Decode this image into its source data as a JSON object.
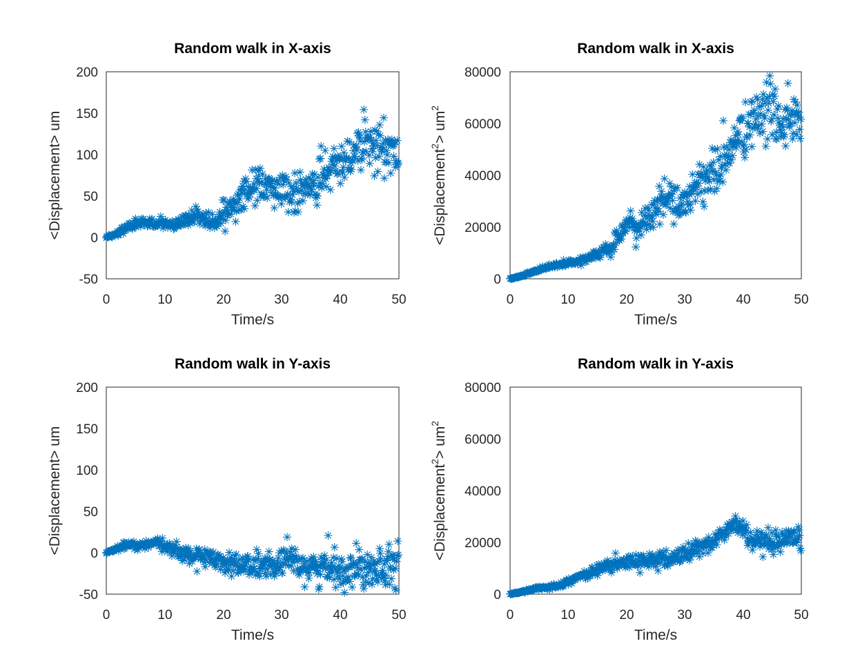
{
  "figure": {
    "background": "#ffffff",
    "marker_color": "#0072bd",
    "axis_color": "#262626"
  },
  "chart_data": [
    {
      "type": "scatter",
      "marker": "asterisk",
      "title": "Random walk in X-axis",
      "xlabel": "Time/s",
      "ylabel": "<Displacement> um",
      "xlim": [
        0,
        50
      ],
      "ylim": [
        -50,
        200
      ],
      "xticks": [
        0,
        10,
        20,
        30,
        40,
        50
      ],
      "yticks": [
        -50,
        0,
        50,
        100,
        150,
        200
      ],
      "xticklabels": [
        "0",
        "10",
        "20",
        "30",
        "40",
        "50"
      ],
      "yticklabels": [
        "-50",
        "0",
        "50",
        "100",
        "150",
        "200"
      ],
      "grid": false,
      "series": [
        {
          "x": [
            0,
            1,
            2,
            3,
            4,
            5,
            6,
            7,
            8,
            9,
            10,
            11,
            12,
            13,
            14,
            15,
            16,
            17,
            18,
            19,
            20,
            21,
            22,
            23,
            24,
            25,
            26,
            27,
            28,
            29,
            30,
            31,
            32,
            33,
            34,
            35,
            36,
            37,
            38,
            39,
            40,
            41,
            42,
            43,
            44,
            45,
            46,
            47,
            48,
            49,
            50
          ],
          "y": [
            0,
            2,
            5,
            10,
            13,
            16,
            18,
            17,
            16,
            18,
            17,
            15,
            16,
            20,
            22,
            25,
            27,
            22,
            18,
            20,
            28,
            38,
            42,
            48,
            55,
            60,
            63,
            62,
            60,
            58,
            55,
            52,
            50,
            53,
            58,
            62,
            68,
            72,
            78,
            85,
            90,
            95,
            100,
            110,
            118,
            115,
            110,
            105,
            100,
            105,
            98
          ],
          "spread": [
            1,
            2,
            3,
            4,
            5,
            5,
            5,
            5,
            5,
            5,
            6,
            6,
            7,
            7,
            8,
            8,
            9,
            10,
            10,
            11,
            12,
            13,
            14,
            15,
            16,
            16,
            17,
            18,
            18,
            19,
            20,
            20,
            21,
            21,
            22,
            22,
            23,
            23,
            24,
            24,
            25,
            25,
            25,
            26,
            26,
            26,
            27,
            27,
            27,
            28,
            28
          ]
        }
      ]
    },
    {
      "type": "scatter",
      "marker": "asterisk",
      "title": "Random walk in X-axis",
      "xlabel": "Time/s",
      "ylabel_main": "<Displacement",
      "ylabel_sup": "2",
      "ylabel_tail": "> um",
      "ylabel_sup2": "2",
      "xlim": [
        0,
        50
      ],
      "ylim": [
        0,
        80000
      ],
      "xticks": [
        0,
        10,
        20,
        30,
        40,
        50
      ],
      "yticks": [
        0,
        20000,
        40000,
        60000,
        80000
      ],
      "xticklabels": [
        "0",
        "10",
        "20",
        "30",
        "40",
        "50"
      ],
      "yticklabels": [
        "0",
        "20000",
        "40000",
        "60000",
        "80000"
      ],
      "grid": false,
      "series": [
        {
          "x": [
            0,
            1,
            2,
            3,
            4,
            5,
            6,
            7,
            8,
            9,
            10,
            11,
            12,
            13,
            14,
            15,
            16,
            17,
            18,
            19,
            20,
            21,
            22,
            23,
            24,
            25,
            26,
            27,
            28,
            29,
            30,
            31,
            32,
            33,
            34,
            35,
            36,
            37,
            38,
            39,
            40,
            41,
            42,
            43,
            44,
            45,
            46,
            47,
            48,
            49,
            50
          ],
          "y": [
            0,
            500,
            1200,
            2000,
            2800,
            3500,
            4200,
            4800,
            5200,
            5600,
            6000,
            6400,
            7000,
            7800,
            8500,
            9500,
            10500,
            12000,
            14000,
            17000,
            20000,
            21000,
            20000,
            22000,
            24000,
            26000,
            30000,
            32000,
            30000,
            29000,
            30000,
            33000,
            36000,
            38000,
            40000,
            41000,
            43000,
            46000,
            50000,
            54000,
            57000,
            59000,
            61000,
            63000,
            64000,
            65000,
            63000,
            61000,
            62000,
            60000,
            58000
          ],
          "spread": [
            150,
            250,
            400,
            500,
            600,
            700,
            800,
            800,
            900,
            900,
            1000,
            1100,
            1200,
            1300,
            1500,
            1700,
            2000,
            2400,
            2800,
            3200,
            3600,
            4000,
            4300,
            4600,
            4900,
            5200,
            5500,
            5800,
            6000,
            6200,
            6400,
            6600,
            6800,
            7000,
            7200,
            7400,
            7600,
            7800,
            8000,
            8200,
            8400,
            8600,
            8800,
            9000,
            9200,
            9400,
            9500,
            9600,
            9700,
            9800,
            9900
          ]
        }
      ]
    },
    {
      "type": "scatter",
      "marker": "asterisk",
      "title": "Random walk in Y-axis",
      "xlabel": "Time/s",
      "ylabel": "<Displacement> um",
      "xlim": [
        0,
        50
      ],
      "ylim": [
        -50,
        200
      ],
      "xticks": [
        0,
        10,
        20,
        30,
        40,
        50
      ],
      "yticks": [
        -50,
        0,
        50,
        100,
        150,
        200
      ],
      "xticklabels": [
        "0",
        "10",
        "20",
        "30",
        "40",
        "50"
      ],
      "yticklabels": [
        "-50",
        "0",
        "50",
        "100",
        "150",
        "200"
      ],
      "grid": false,
      "series": [
        {
          "x": [
            0,
            1,
            2,
            3,
            4,
            5,
            6,
            7,
            8,
            9,
            10,
            11,
            12,
            13,
            14,
            15,
            16,
            17,
            18,
            19,
            20,
            21,
            22,
            23,
            24,
            25,
            26,
            27,
            28,
            29,
            30,
            31,
            32,
            33,
            34,
            35,
            36,
            37,
            38,
            39,
            40,
            41,
            42,
            43,
            44,
            45,
            46,
            47,
            48,
            49,
            50
          ],
          "y": [
            0,
            3,
            5,
            8,
            10,
            9,
            8,
            10,
            11,
            10,
            8,
            5,
            3,
            0,
            -2,
            -4,
            -5,
            -6,
            -5,
            -8,
            -10,
            -12,
            -14,
            -15,
            -16,
            -17,
            -15,
            -14,
            -16,
            -18,
            -15,
            -12,
            -10,
            -12,
            -15,
            -18,
            -20,
            -18,
            -15,
            -17,
            -20,
            -22,
            -20,
            -18,
            -15,
            -14,
            -16,
            -15,
            -12,
            -10,
            -12
          ],
          "spread": [
            1,
            2,
            3,
            4,
            4,
            4,
            5,
            5,
            5,
            6,
            6,
            7,
            7,
            8,
            8,
            9,
            9,
            10,
            10,
            11,
            11,
            12,
            12,
            13,
            13,
            14,
            14,
            15,
            15,
            15,
            16,
            16,
            16,
            17,
            17,
            17,
            18,
            18,
            18,
            19,
            19,
            19,
            20,
            20,
            20,
            20,
            21,
            21,
            21,
            22,
            22
          ]
        }
      ]
    },
    {
      "type": "scatter",
      "marker": "asterisk",
      "title": "Random walk in Y-axis",
      "xlabel": "Time/s",
      "ylabel_main": "<Displacement",
      "ylabel_sup": "2",
      "ylabel_tail": "> um",
      "ylabel_sup2": "2",
      "xlim": [
        0,
        50
      ],
      "ylim": [
        0,
        80000
      ],
      "xticks": [
        0,
        10,
        20,
        30,
        40,
        50
      ],
      "yticks": [
        0,
        20000,
        40000,
        60000,
        80000
      ],
      "xticklabels": [
        "0",
        "10",
        "20",
        "30",
        "40",
        "50"
      ],
      "yticklabels": [
        "0",
        "20000",
        "40000",
        "60000",
        "80000"
      ],
      "grid": false,
      "series": [
        {
          "x": [
            0,
            1,
            2,
            3,
            4,
            5,
            6,
            7,
            8,
            9,
            10,
            11,
            12,
            13,
            14,
            15,
            16,
            17,
            18,
            19,
            20,
            21,
            22,
            23,
            24,
            25,
            26,
            27,
            28,
            29,
            30,
            31,
            32,
            33,
            34,
            35,
            36,
            37,
            38,
            39,
            40,
            41,
            42,
            43,
            44,
            45,
            46,
            47,
            48,
            49,
            50
          ],
          "y": [
            0,
            400,
            900,
            1400,
            1900,
            2300,
            2600,
            2800,
            3200,
            4000,
            5000,
            6000,
            6800,
            7600,
            8500,
            9500,
            10500,
            11000,
            11500,
            11800,
            12000,
            12500,
            13000,
            13200,
            13000,
            12800,
            13000,
            13500,
            14000,
            14500,
            15500,
            16500,
            17500,
            18500,
            19500,
            20500,
            22000,
            24000,
            26000,
            27000,
            25000,
            22000,
            20000,
            19000,
            19500,
            20000,
            19000,
            20000,
            21000,
            20500,
            20000
          ],
          "spread": [
            100,
            200,
            300,
            400,
            500,
            600,
            600,
            700,
            800,
            900,
            1000,
            1100,
            1200,
            1300,
            1400,
            1600,
            1800,
            2000,
            2100,
            2200,
            2300,
            2400,
            2500,
            2600,
            2700,
            2800,
            2800,
            2900,
            2900,
            3000,
            3000,
            3100,
            3100,
            3200,
            3200,
            3300,
            3300,
            3400,
            3400,
            3500,
            3500,
            3600,
            3600,
            3600,
            3700,
            3700,
            3700,
            3800,
            3800,
            3800,
            3900
          ]
        }
      ]
    }
  ]
}
